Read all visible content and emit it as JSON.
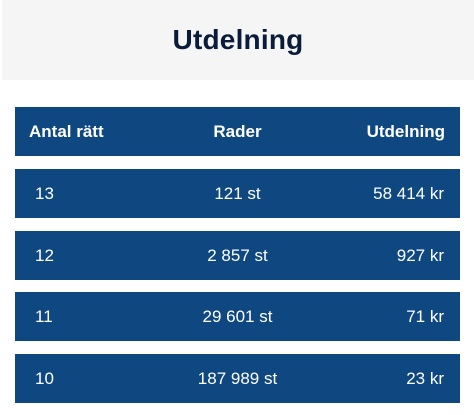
{
  "header": {
    "title": "Utdelning"
  },
  "table": {
    "columns": [
      "Antal rätt",
      "Rader",
      "Utdelning"
    ],
    "rows": [
      [
        "13",
        "121 st",
        "58 414 kr"
      ],
      [
        "12",
        "2 857 st",
        "927 kr"
      ],
      [
        "11",
        "29 601 st",
        "71 kr"
      ],
      [
        "10",
        "187 989 st",
        "23 kr"
      ]
    ]
  },
  "colors": {
    "row_background": "#0f4780",
    "header_background": "#f5f5f6",
    "title_text": "#0b1b3a"
  }
}
